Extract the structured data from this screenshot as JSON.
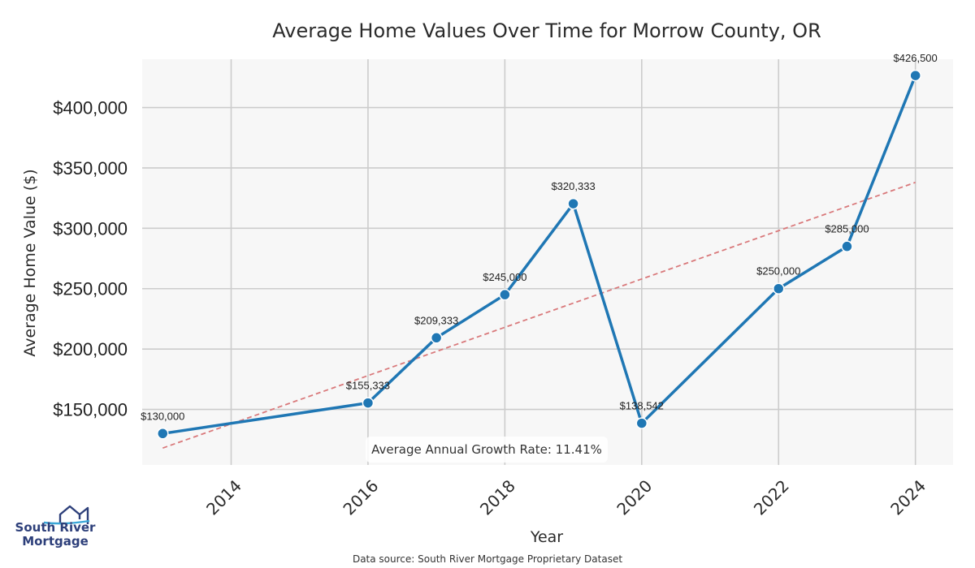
{
  "chart_data": {
    "type": "line",
    "title": "Average Home Values Over Time for Morrow County, OR",
    "xlabel": "Year",
    "ylabel": "Average Home Value ($)",
    "xlim": [
      2012.7,
      2024.55
    ],
    "ylim": [
      104000,
      440000
    ],
    "x_ticks": [
      2014,
      2016,
      2018,
      2020,
      2022,
      2024
    ],
    "y_ticks": [
      150000,
      200000,
      250000,
      300000,
      350000,
      400000
    ],
    "y_tick_labels": [
      "$150,000",
      "$200,000",
      "$250,000",
      "$300,000",
      "$350,000",
      "$400,000"
    ],
    "series": [
      {
        "name": "Average Home Value",
        "color": "#1f77b4",
        "x": [
          2013,
          2016,
          2017,
          2018,
          2019,
          2020,
          2022,
          2023,
          2024
        ],
        "values": [
          130000,
          155333,
          209333,
          245000,
          320333,
          138542,
          250000,
          285000,
          426500
        ],
        "labels": [
          "$130,000",
          "$155,333",
          "$209,333",
          "$245,000",
          "$320,333",
          "$138,542",
          "$250,000",
          "$285,000",
          "$426,500"
        ]
      }
    ],
    "trendline": {
      "color": "#d9797b",
      "x": [
        2013,
        2024
      ],
      "values": [
        118000,
        338000
      ]
    },
    "annotation": "Average Annual Growth Rate: 11.41%",
    "grid": true
  },
  "source_note": "Data source: South River Mortgage Proprietary Dataset",
  "logo": {
    "line1": "South River",
    "line2": "Mortgage"
  }
}
